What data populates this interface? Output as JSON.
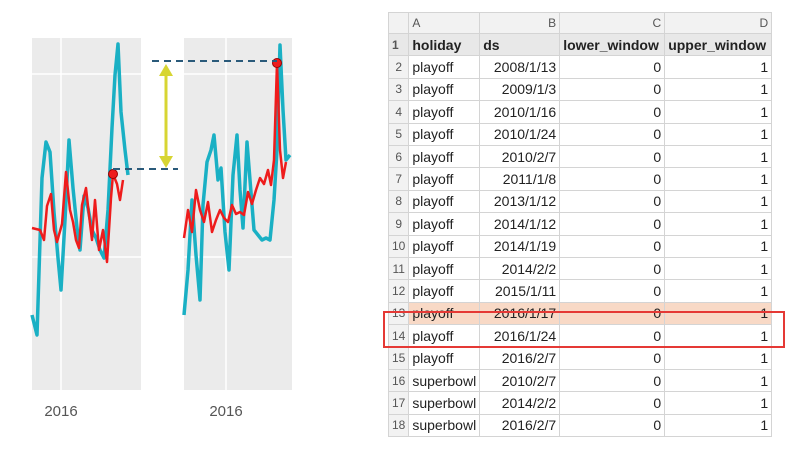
{
  "chart": {
    "left_panel": {
      "tick_label": "2016"
    },
    "right_panel": {
      "tick_label": "2016"
    },
    "colors": {
      "background": "#ebebeb",
      "actual_series": "#1ab0c4",
      "forecast_series": "#ee1c1c",
      "arrow": "#d7d533",
      "dashed_line": "#2a5a7a",
      "gridline": "#ffffff"
    }
  },
  "spreadsheet": {
    "columns": [
      "A",
      "B",
      "C",
      "D"
    ],
    "row_numbers": [
      "1",
      "2",
      "3",
      "4",
      "5",
      "6",
      "7",
      "8",
      "9",
      "10",
      "11",
      "12",
      "13",
      "14",
      "15",
      "16",
      "17",
      "18"
    ],
    "header": [
      "holiday",
      "ds",
      "lower_window",
      "upper_window"
    ],
    "rows": [
      [
        "playoff",
        "2008/1/13",
        "0",
        "1"
      ],
      [
        "playoff",
        "2009/1/3",
        "0",
        "1"
      ],
      [
        "playoff",
        "2010/1/16",
        "0",
        "1"
      ],
      [
        "playoff",
        "2010/1/24",
        "0",
        "1"
      ],
      [
        "playoff",
        "2010/2/7",
        "0",
        "1"
      ],
      [
        "playoff",
        "2011/1/8",
        "0",
        "1"
      ],
      [
        "playoff",
        "2013/1/12",
        "0",
        "1"
      ],
      [
        "playoff",
        "2014/1/12",
        "0",
        "1"
      ],
      [
        "playoff",
        "2014/1/19",
        "0",
        "1"
      ],
      [
        "playoff",
        "2014/2/2",
        "0",
        "1"
      ],
      [
        "playoff",
        "2015/1/11",
        "0",
        "1"
      ],
      [
        "playoff",
        "2016/1/17",
        "0",
        "1"
      ],
      [
        "playoff",
        "2016/1/24",
        "0",
        "1"
      ],
      [
        "playoff",
        "2016/2/7",
        "0",
        "1"
      ],
      [
        "superbowl",
        "2010/2/7",
        "0",
        "1"
      ],
      [
        "superbowl",
        "2014/2/2",
        "0",
        "1"
      ],
      [
        "superbowl",
        "2016/2/7",
        "0",
        "1"
      ]
    ],
    "highlighted_row": "13",
    "highlight_color": "#f8d9c6",
    "highlight_border_color": "#e53935"
  }
}
